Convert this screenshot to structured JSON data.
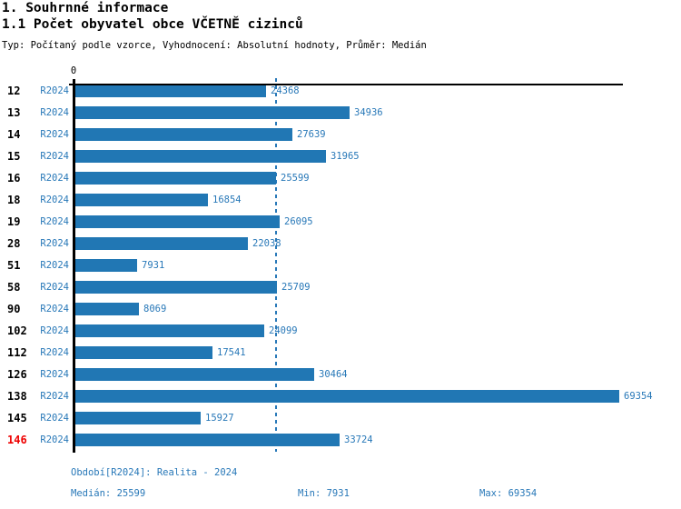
{
  "title": "1. Souhrnné informace",
  "subtitle": "1.1 Počet obyvatel obce VČETNĚ cizinců",
  "meta_line": "Typ: Počítaný podle vzorce, Vyhodnocení: Absolutní hodnoty, Průměr: Medián",
  "colors": {
    "bar": "#2177b4",
    "text_blue": "#2878b8",
    "highlight_red": "#ee0000",
    "axis_black": "#000000"
  },
  "chart_data": {
    "type": "bar",
    "orientation": "horizontal",
    "title": "1.1 Počet obyvatel obce VČETNĚ cizinců",
    "axis_zero_label": "0",
    "xlim": [
      0,
      69354
    ],
    "grid": false,
    "period_label": "R2024",
    "categories": [
      "12",
      "13",
      "14",
      "15",
      "16",
      "18",
      "19",
      "28",
      "51",
      "58",
      "90",
      "102",
      "112",
      "126",
      "138",
      "145",
      "146"
    ],
    "series": [
      {
        "name": "R2024",
        "values": [
          24368,
          34936,
          27639,
          31965,
          25599,
          16854,
          26095,
          22038,
          7931,
          25709,
          8069,
          24099,
          17541,
          30464,
          69354,
          15927,
          33724
        ]
      }
    ],
    "highlighted_categories": [
      "146"
    ],
    "median": 25599,
    "min": 7931,
    "max": 69354,
    "annotations": [
      "median-dashed-vertical-line at 25599"
    ]
  },
  "footer": {
    "period_line": "Období[R2024]: Realita - 2024",
    "median_label": "Medián: 25599",
    "min_label": "Min: 7931",
    "max_label": "Max: 69354"
  }
}
